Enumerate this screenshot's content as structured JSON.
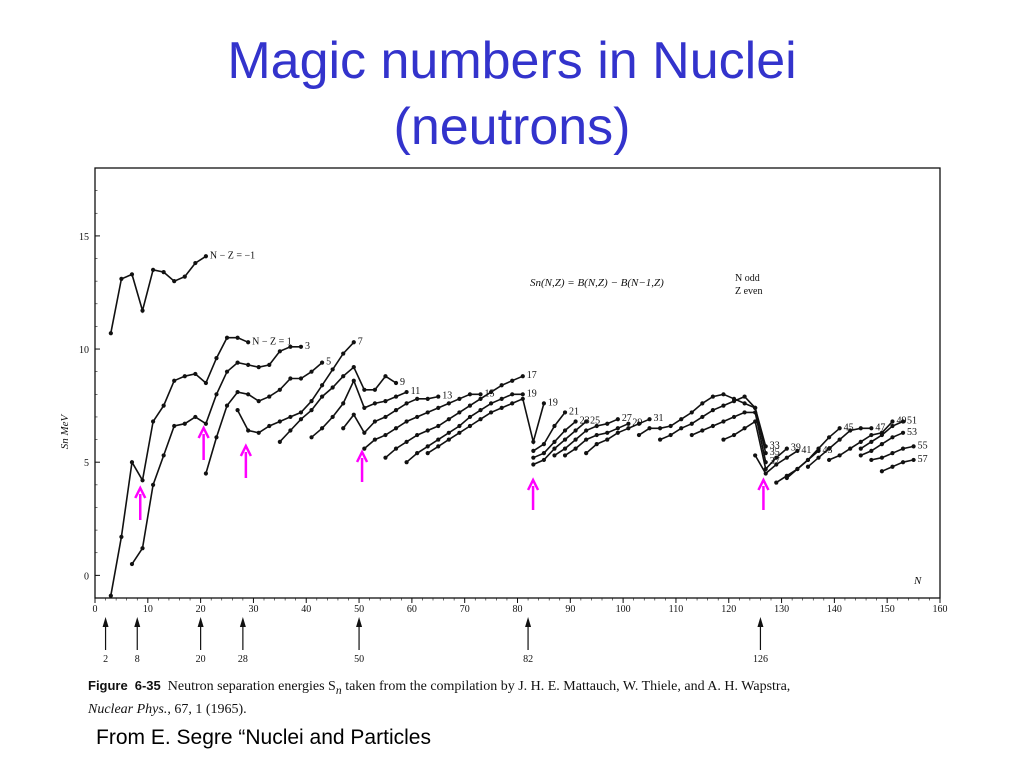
{
  "title_line1": "Magic numbers in Nuclei",
  "title_line2": "(neutrons)",
  "credit": "From E. Segre “Nuclei and Particles",
  "caption": {
    "fig_label": "Figure",
    "fig_number": "6-35",
    "text1": "Neutron separation energies S",
    "text1_sub": "n",
    "text2": " taken from the compilation by J. H. E. Mattauch, W. Thiele, and A. H. Wapstra,",
    "journal": "Nuclear Phys.",
    "text3": ", 67, 1 (1965)."
  },
  "colors": {
    "title": "#3333cc",
    "arrow": "#ff00ff",
    "ink": "#111111"
  },
  "chart_data": {
    "type": "line",
    "ylabel": "Sn MeV",
    "xlabel": "N",
    "xlim": [
      0,
      160
    ],
    "ylim": [
      -1,
      18
    ],
    "x_ticks": [
      0,
      10,
      20,
      30,
      40,
      50,
      60,
      70,
      80,
      90,
      100,
      110,
      120,
      130,
      140,
      150,
      160
    ],
    "y_ticks": [
      0,
      5,
      10,
      15
    ],
    "formula": "Sn(N,Z) = B(N,Z) − B(N−1,Z)",
    "formula_note_1": "N odd",
    "formula_note_2": "Z even",
    "magic_numbers": [
      2,
      8,
      20,
      28,
      50,
      82,
      126
    ],
    "highlighted_magic": [
      8,
      20,
      28,
      50,
      82,
      126
    ],
    "series": [
      {
        "name": "N − Z = −1",
        "x": [
          3,
          5,
          7,
          9,
          11,
          13,
          15,
          17,
          19,
          21
        ],
        "y": [
          10.7,
          13.1,
          13.3,
          11.7,
          13.5,
          13.4,
          13.0,
          13.2,
          13.8,
          14.1
        ]
      },
      {
        "name": "N − Z = 1",
        "x": [
          3,
          5,
          7,
          9,
          11,
          13,
          15,
          17,
          19,
          21,
          23,
          25,
          27,
          29
        ],
        "y": [
          -0.9,
          1.7,
          5.0,
          4.2,
          6.8,
          7.5,
          8.6,
          8.8,
          8.9,
          8.5,
          9.6,
          10.5,
          10.5,
          10.3
        ]
      },
      {
        "name": "3",
        "x": [
          7,
          9,
          11,
          13,
          15,
          17,
          19,
          21,
          23,
          25,
          27,
          29,
          31,
          33,
          35,
          37,
          39
        ],
        "y": [
          0.5,
          1.2,
          4.0,
          5.3,
          6.6,
          6.7,
          7.0,
          6.7,
          8.0,
          9.0,
          9.4,
          9.3,
          9.2,
          9.3,
          9.9,
          10.1,
          10.1
        ]
      },
      {
        "name": "5",
        "x": [
          21,
          23,
          25,
          27,
          29,
          31,
          33,
          35,
          37,
          39,
          41,
          43
        ],
        "y": [
          4.5,
          6.1,
          7.5,
          8.1,
          8.0,
          7.7,
          7.9,
          8.2,
          8.7,
          8.7,
          9.0,
          9.4
        ]
      },
      {
        "name": "7",
        "x": [
          27,
          29,
          31,
          33,
          35,
          37,
          39,
          41,
          43,
          45,
          47,
          49
        ],
        "y": [
          7.3,
          6.4,
          6.3,
          6.6,
          6.8,
          7.0,
          7.2,
          7.7,
          8.4,
          9.1,
          9.8,
          10.3
        ]
      },
      {
        "name": "9",
        "x": [
          35,
          37,
          39,
          41,
          43,
          45,
          47,
          49,
          51,
          53,
          55,
          57
        ],
        "y": [
          5.9,
          6.4,
          6.9,
          7.3,
          7.9,
          8.3,
          8.8,
          9.2,
          8.2,
          8.2,
          8.8,
          8.5
        ]
      },
      {
        "name": "11",
        "x": [
          41,
          43,
          45,
          47,
          49,
          51,
          53,
          55,
          57,
          59
        ],
        "y": [
          6.1,
          6.5,
          7.0,
          7.6,
          8.6,
          7.4,
          7.6,
          7.7,
          7.9,
          8.1
        ]
      },
      {
        "name": "13",
        "x": [
          47,
          49,
          51,
          53,
          55,
          57,
          59,
          61,
          63,
          65
        ],
        "y": [
          6.5,
          7.1,
          6.3,
          6.8,
          7.0,
          7.3,
          7.6,
          7.8,
          7.8,
          7.9
        ]
      },
      {
        "name": "15",
        "x": [
          51,
          53,
          55,
          57,
          59,
          61,
          63,
          65,
          67,
          69,
          71,
          73
        ],
        "y": [
          5.6,
          6.0,
          6.2,
          6.5,
          6.8,
          7.0,
          7.2,
          7.4,
          7.6,
          7.8,
          8.0,
          8.0
        ]
      },
      {
        "name": "17",
        "x": [
          55,
          57,
          59,
          61,
          63,
          65,
          67,
          69,
          71,
          73,
          75,
          77,
          79,
          81
        ],
        "y": [
          5.2,
          5.6,
          5.9,
          6.2,
          6.4,
          6.6,
          6.9,
          7.2,
          7.5,
          7.8,
          8.1,
          8.4,
          8.6,
          8.8
        ]
      },
      {
        "name": "19",
        "x": [
          59,
          61,
          63,
          65,
          67,
          69,
          71,
          73,
          75,
          77,
          79,
          81
        ],
        "y": [
          5.0,
          5.4,
          5.7,
          6.0,
          6.3,
          6.6,
          7.0,
          7.3,
          7.6,
          7.8,
          8.0,
          8.0
        ]
      },
      {
        "name": "19",
        "x": [
          63,
          65,
          67,
          69,
          71,
          73,
          75,
          77,
          79,
          81,
          83,
          85
        ],
        "y": [
          5.4,
          5.7,
          6.0,
          6.3,
          6.6,
          6.9,
          7.2,
          7.4,
          7.6,
          7.8,
          5.9,
          7.6
        ]
      },
      {
        "name": "21",
        "x": [
          83,
          85,
          87,
          89
        ],
        "y": [
          5.5,
          5.8,
          6.6,
          7.2
        ]
      },
      {
        "name": "23",
        "x": [
          83,
          85,
          87,
          89,
          91
        ],
        "y": [
          5.2,
          5.4,
          5.9,
          6.4,
          6.8
        ]
      },
      {
        "name": "25",
        "x": [
          83,
          85,
          87,
          89,
          91,
          93
        ],
        "y": [
          4.9,
          5.1,
          5.6,
          6.0,
          6.4,
          6.8
        ]
      },
      {
        "name": "27",
        "x": [
          87,
          89,
          91,
          93,
          95,
          97,
          99
        ],
        "y": [
          5.3,
          5.6,
          6.0,
          6.4,
          6.6,
          6.7,
          6.9
        ]
      },
      {
        "name": "29",
        "x": [
          89,
          91,
          93,
          95,
          97,
          99,
          101
        ],
        "y": [
          5.3,
          5.6,
          6.0,
          6.2,
          6.3,
          6.5,
          6.7
        ]
      },
      {
        "name": "31",
        "x": [
          93,
          95,
          97,
          99,
          101,
          103,
          105
        ],
        "y": [
          5.4,
          5.8,
          6.0,
          6.3,
          6.5,
          6.7,
          6.9
        ]
      },
      {
        "name": "33",
        "x": [
          103,
          105,
          107,
          109,
          111,
          113,
          115,
          117,
          119,
          121,
          123,
          125,
          127
        ],
        "y": [
          6.2,
          6.5,
          6.5,
          6.6,
          6.9,
          7.2,
          7.6,
          7.9,
          8.0,
          7.8,
          7.6,
          7.4,
          5.7
        ]
      },
      {
        "name": "35",
        "x": [
          107,
          109,
          111,
          113,
          115,
          117,
          119,
          121,
          123,
          125,
          127
        ],
        "y": [
          6.0,
          6.2,
          6.5,
          6.7,
          7.0,
          7.3,
          7.5,
          7.7,
          7.9,
          7.4,
          5.4
        ]
      },
      {
        "name": "37",
        "x": [
          113,
          115,
          117,
          119,
          121,
          123,
          125,
          127
        ],
        "y": [
          6.2,
          6.4,
          6.6,
          6.8,
          7.0,
          7.2,
          7.2,
          5.0
        ]
      },
      {
        "name": "39",
        "x": [
          119,
          121,
          123,
          125,
          127,
          129,
          131
        ],
        "y": [
          6.0,
          6.2,
          6.5,
          6.8,
          4.7,
          5.2,
          5.6
        ]
      },
      {
        "name": "41",
        "x": [
          125,
          127,
          129,
          131,
          133
        ],
        "y": [
          5.3,
          4.5,
          4.9,
          5.2,
          5.5
        ]
      },
      {
        "name": "43",
        "x": [
          129,
          131,
          133,
          135,
          137
        ],
        "y": [
          4.1,
          4.4,
          4.7,
          5.1,
          5.5
        ]
      },
      {
        "name": "45",
        "x": [
          131,
          133,
          135,
          137,
          139,
          141
        ],
        "y": [
          4.3,
          4.7,
          5.1,
          5.6,
          6.1,
          6.5
        ]
      },
      {
        "name": "47",
        "x": [
          135,
          137,
          139,
          141,
          143,
          145,
          147
        ],
        "y": [
          4.8,
          5.2,
          5.6,
          6.0,
          6.4,
          6.5,
          6.5
        ]
      },
      {
        "name": "49",
        "x": [
          139,
          141,
          143,
          145,
          147,
          149,
          151
        ],
        "y": [
          5.1,
          5.3,
          5.6,
          5.9,
          6.2,
          6.3,
          6.8
        ]
      },
      {
        "name": "51",
        "x": [
          145,
          147,
          149,
          151,
          153
        ],
        "y": [
          5.6,
          5.9,
          6.2,
          6.6,
          6.8
        ]
      },
      {
        "name": "53",
        "x": [
          145,
          147,
          149,
          151,
          153
        ],
        "y": [
          5.3,
          5.5,
          5.8,
          6.1,
          6.3
        ]
      },
      {
        "name": "55",
        "x": [
          147,
          149,
          151,
          153,
          155
        ],
        "y": [
          5.1,
          5.2,
          5.4,
          5.6,
          5.7
        ]
      },
      {
        "name": "57",
        "x": [
          149,
          151,
          153,
          155
        ],
        "y": [
          4.6,
          4.8,
          5.0,
          5.1
        ]
      }
    ]
  }
}
